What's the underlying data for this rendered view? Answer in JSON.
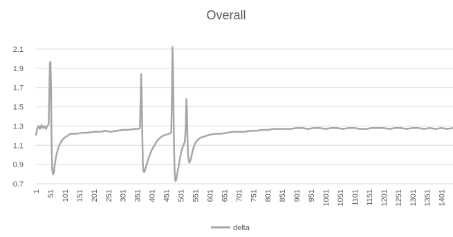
{
  "chart_data": {
    "type": "line",
    "title": "Overall",
    "xlabel": "",
    "ylabel": "",
    "grid": true,
    "legend_position": "bottom",
    "ylim": [
      0.7,
      2.1
    ],
    "xlim": [
      1,
      1440
    ],
    "y_ticks": [
      "0.7",
      "0.9",
      "1.1",
      "1.3",
      "1.5",
      "1.7",
      "1.9",
      "2.1"
    ],
    "y_tick_values": [
      0.7,
      0.9,
      1.1,
      1.3,
      1.5,
      1.7,
      1.9,
      2.1
    ],
    "x_ticks": [
      "1",
      "51",
      "101",
      "151",
      "201",
      "251",
      "301",
      "351",
      "401",
      "451",
      "501",
      "551",
      "601",
      "651",
      "701",
      "751",
      "801",
      "851",
      "901",
      "951",
      "1001",
      "1051",
      "1101",
      "1151",
      "1201",
      "1251",
      "1301",
      "1351",
      "1401"
    ],
    "x_tick_values": [
      1,
      51,
      101,
      151,
      201,
      251,
      301,
      351,
      401,
      451,
      501,
      551,
      601,
      651,
      701,
      751,
      801,
      851,
      901,
      951,
      1001,
      1051,
      1101,
      1151,
      1201,
      1251,
      1301,
      1351,
      1401
    ],
    "series": [
      {
        "name": "delta",
        "color": "#a6a6a6",
        "x": [
          1,
          5,
          10,
          15,
          20,
          25,
          30,
          35,
          40,
          45,
          47,
          49,
          51,
          53,
          55,
          57,
          60,
          63,
          66,
          70,
          75,
          80,
          90,
          100,
          120,
          140,
          160,
          180,
          200,
          220,
          240,
          260,
          280,
          300,
          320,
          340,
          355,
          360,
          362,
          364,
          366,
          368,
          370,
          372,
          375,
          380,
          390,
          400,
          410,
          420,
          430,
          440,
          450,
          460,
          468,
          470,
          472,
          474,
          476,
          478,
          480,
          482,
          485,
          488,
          492,
          496,
          500,
          505,
          510,
          515,
          518,
          520,
          522,
          524,
          526,
          528,
          530,
          535,
          540,
          545,
          550,
          560,
          570,
          580,
          590,
          600,
          620,
          640,
          660,
          680,
          700,
          720,
          740,
          760,
          780,
          800,
          820,
          840,
          860,
          880,
          900,
          920,
          940,
          960,
          980,
          1000,
          1020,
          1040,
          1060,
          1080,
          1100,
          1120,
          1140,
          1160,
          1180,
          1200,
          1220,
          1240,
          1260,
          1280,
          1300,
          1320,
          1340,
          1360,
          1380,
          1400,
          1420,
          1440
        ],
        "y": [
          1.2,
          1.27,
          1.3,
          1.27,
          1.31,
          1.28,
          1.3,
          1.27,
          1.3,
          1.32,
          1.6,
          1.95,
          1.97,
          1.7,
          1.1,
          0.85,
          0.8,
          0.82,
          0.9,
          0.98,
          1.04,
          1.09,
          1.15,
          1.18,
          1.22,
          1.22,
          1.23,
          1.23,
          1.24,
          1.24,
          1.25,
          1.24,
          1.25,
          1.26,
          1.26,
          1.27,
          1.27,
          1.28,
          1.55,
          1.84,
          1.6,
          1.2,
          0.9,
          0.83,
          0.82,
          0.87,
          0.97,
          1.05,
          1.1,
          1.15,
          1.18,
          1.2,
          1.21,
          1.22,
          1.23,
          1.6,
          2.12,
          1.9,
          1.4,
          1.0,
          0.8,
          0.73,
          0.74,
          0.8,
          0.86,
          0.93,
          1.0,
          1.06,
          1.1,
          1.14,
          1.3,
          1.58,
          1.45,
          1.15,
          1.0,
          0.95,
          0.92,
          0.95,
          1.02,
          1.08,
          1.12,
          1.16,
          1.18,
          1.19,
          1.2,
          1.21,
          1.22,
          1.22,
          1.23,
          1.24,
          1.24,
          1.24,
          1.25,
          1.25,
          1.26,
          1.26,
          1.27,
          1.27,
          1.27,
          1.27,
          1.28,
          1.28,
          1.27,
          1.28,
          1.28,
          1.27,
          1.28,
          1.28,
          1.27,
          1.28,
          1.28,
          1.27,
          1.27,
          1.28,
          1.28,
          1.28,
          1.27,
          1.28,
          1.28,
          1.27,
          1.28,
          1.28,
          1.27,
          1.28,
          1.27,
          1.28,
          1.27,
          1.28
        ]
      }
    ]
  }
}
